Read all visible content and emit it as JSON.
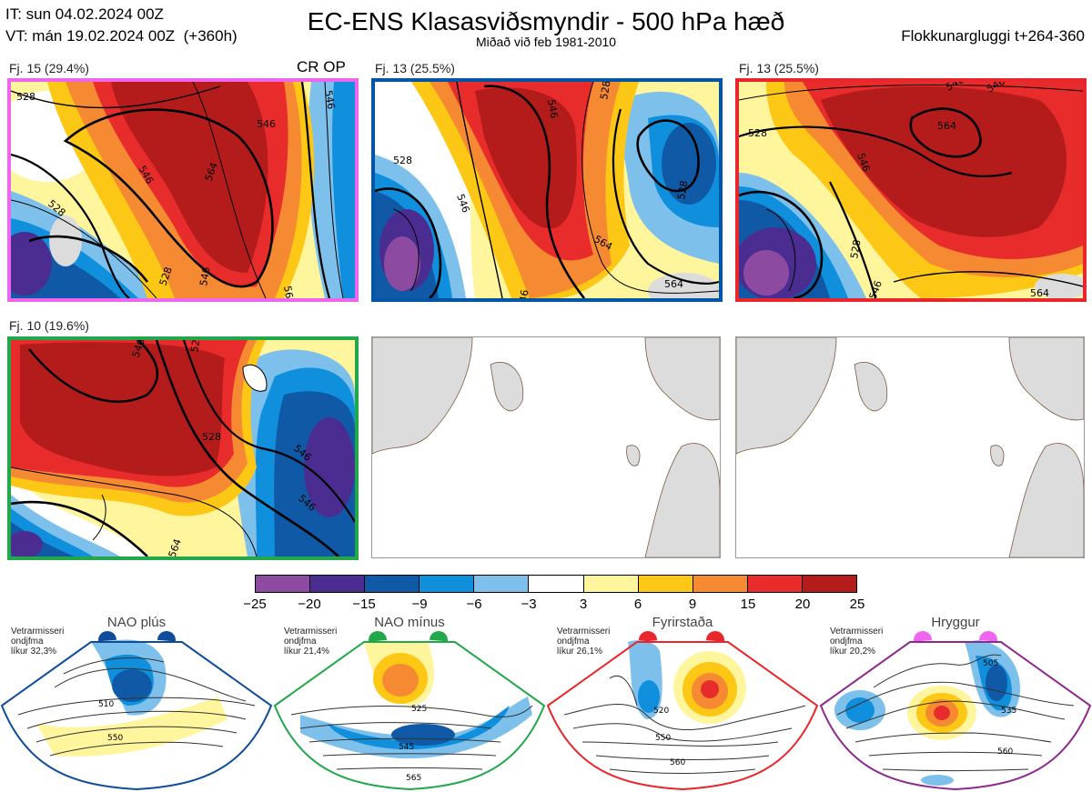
{
  "header": {
    "init_time": "IT: sun 04.02.2024 00Z",
    "valid_time": "VT: mán 19.02.2024 00Z  (+360h)",
    "title": "EC-ENS Klasasviðsmyndir - 500 hPa hæð",
    "subtitle": "Miðað við feb 1981-2010",
    "window": "Flokkunargluggi t+264-360"
  },
  "clusters": [
    {
      "label": "Fj. 15 (29.4%)",
      "border_color": "#ee66ee",
      "extra_label": "CR OP",
      "contours": [
        "528",
        "546",
        "564",
        "528",
        "546",
        "528",
        "546",
        "564",
        "546"
      ]
    },
    {
      "label": "Fj. 13 (25.5%)",
      "border_color": "#0055a5",
      "contours": [
        "546",
        "528",
        "528",
        "546",
        "564",
        "546",
        "564",
        "528"
      ]
    },
    {
      "label": "Fj. 13 (25.5%)",
      "border_color": "#e8262b",
      "contours": [
        "546",
        "528",
        "564",
        "546",
        "546",
        "528",
        "564",
        "546"
      ]
    },
    {
      "label": "Fj. 10 (19.6%)",
      "border_color": "#22a84a",
      "contours": [
        "546",
        "528",
        "528",
        "546",
        "546",
        "564"
      ]
    }
  ],
  "colorbar": {
    "ticks": [
      "−25",
      "−20",
      "−15",
      "−9",
      "−6",
      "−3",
      "3",
      "6",
      "9",
      "15",
      "20",
      "25"
    ],
    "colors": [
      "#8c4ba0",
      "#4b2d91",
      "#0f59a6",
      "#0f8fdc",
      "#7ec0ec",
      "#ffffff",
      "#fef59d",
      "#fdc815",
      "#f58a32",
      "#e82b2b",
      "#b41c1c"
    ]
  },
  "regimes": [
    {
      "name": "NAO plús",
      "note": [
        "Vetrarmisseri",
        "ondjfma",
        "líkur 32,3%"
      ],
      "color": "#0f4c9a",
      "labels": [
        "510",
        "550"
      ]
    },
    {
      "name": "NAO mínus",
      "note": [
        "Vetrarmisseri",
        "ondjfma",
        "líkur 21,4%"
      ],
      "color": "#22a84a",
      "labels": [
        "525",
        "545",
        "565"
      ]
    },
    {
      "name": "Fyrirstaða",
      "note": [
        "Vetrarmisseri",
        "ondjfma",
        "líkur 26,1%"
      ],
      "color": "#e8262b",
      "labels": [
        "520",
        "550",
        "560"
      ]
    },
    {
      "name": "Hryggur",
      "note": [
        "Vetrarmisseri",
        "ondjfma",
        "líkur 20,2%"
      ],
      "color": "#ee66ee",
      "labels": [
        "505",
        "535",
        "560"
      ]
    }
  ]
}
